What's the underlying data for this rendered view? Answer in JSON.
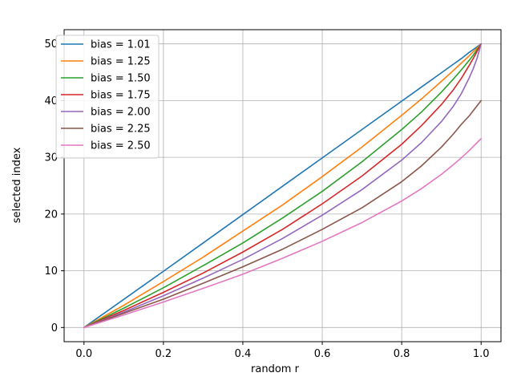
{
  "chart_data": {
    "type": "line",
    "title": "",
    "xlabel": "random r",
    "ylabel": "selected index",
    "xlim": [
      -0.05,
      1.05
    ],
    "ylim": [
      -2.5,
      52.5
    ],
    "xticks": [
      0.0,
      0.2,
      0.4,
      0.6,
      0.8,
      1.0
    ],
    "xtick_labels": [
      "0.0",
      "0.2",
      "0.4",
      "0.6",
      "0.8",
      "1.0"
    ],
    "yticks": [
      0,
      10,
      20,
      30,
      40,
      50
    ],
    "ytick_labels": [
      "0",
      "10",
      "20",
      "30",
      "40",
      "50"
    ],
    "grid": true,
    "legend_position": "top-left",
    "x": [
      0.0,
      0.1,
      0.2,
      0.3,
      0.4,
      0.5,
      0.6,
      0.7,
      0.8,
      0.85,
      0.9,
      0.93,
      0.95,
      0.97,
      0.98,
      0.99,
      1.0
    ],
    "series": [
      {
        "name": "bias = 1.01",
        "color": "#1f77b4",
        "values": [
          0.0,
          4.95,
          9.91,
          14.9,
          19.9,
          24.9,
          29.9,
          34.9,
          39.9,
          42.4,
          44.9,
          46.4,
          47.4,
          48.5,
          49.0,
          49.5,
          50.0
        ]
      },
      {
        "name": "bias = 1.25",
        "color": "#ff7f0e",
        "values": [
          0.0,
          3.9,
          8.1,
          12.4,
          17.0,
          21.6,
          26.6,
          31.8,
          37.4,
          40.3,
          43.4,
          45.3,
          46.6,
          47.9,
          48.6,
          49.3,
          50.0
        ]
      },
      {
        "name": "bias = 1.50",
        "color": "#2ca02c",
        "values": [
          0.0,
          3.4,
          7.0,
          10.9,
          14.9,
          19.3,
          24.0,
          29.2,
          34.9,
          38.0,
          41.5,
          43.8,
          45.4,
          47.1,
          48.0,
          49.0,
          50.0
        ]
      },
      {
        "name": "bias = 1.75",
        "color": "#d62728",
        "values": [
          0.0,
          3.0,
          6.2,
          9.6,
          13.3,
          17.3,
          21.8,
          26.7,
          32.3,
          35.6,
          39.3,
          41.9,
          43.9,
          46.2,
          47.4,
          48.7,
          50.0
        ]
      },
      {
        "name": "bias = 2.00",
        "color": "#9467bd",
        "values": [
          0.0,
          2.7,
          5.6,
          8.7,
          12.0,
          15.7,
          19.8,
          24.3,
          29.5,
          32.6,
          36.3,
          39.0,
          41.2,
          44.0,
          45.6,
          47.5,
          50.0
        ]
      },
      {
        "name": "bias = 2.25",
        "color": "#8c564b",
        "values": [
          0.0,
          2.5,
          5.0,
          7.8,
          10.7,
          13.8,
          17.3,
          21.1,
          25.7,
          28.5,
          31.8,
          34.1,
          35.8,
          37.3,
          38.2,
          39.1,
          40.0
        ]
      },
      {
        "name": "bias = 2.50",
        "color": "#e377c2",
        "values": [
          0.0,
          2.2,
          4.5,
          6.9,
          9.4,
          12.2,
          15.2,
          18.5,
          22.3,
          24.5,
          27.0,
          28.7,
          29.9,
          31.2,
          31.9,
          32.6,
          33.3
        ]
      }
    ]
  }
}
